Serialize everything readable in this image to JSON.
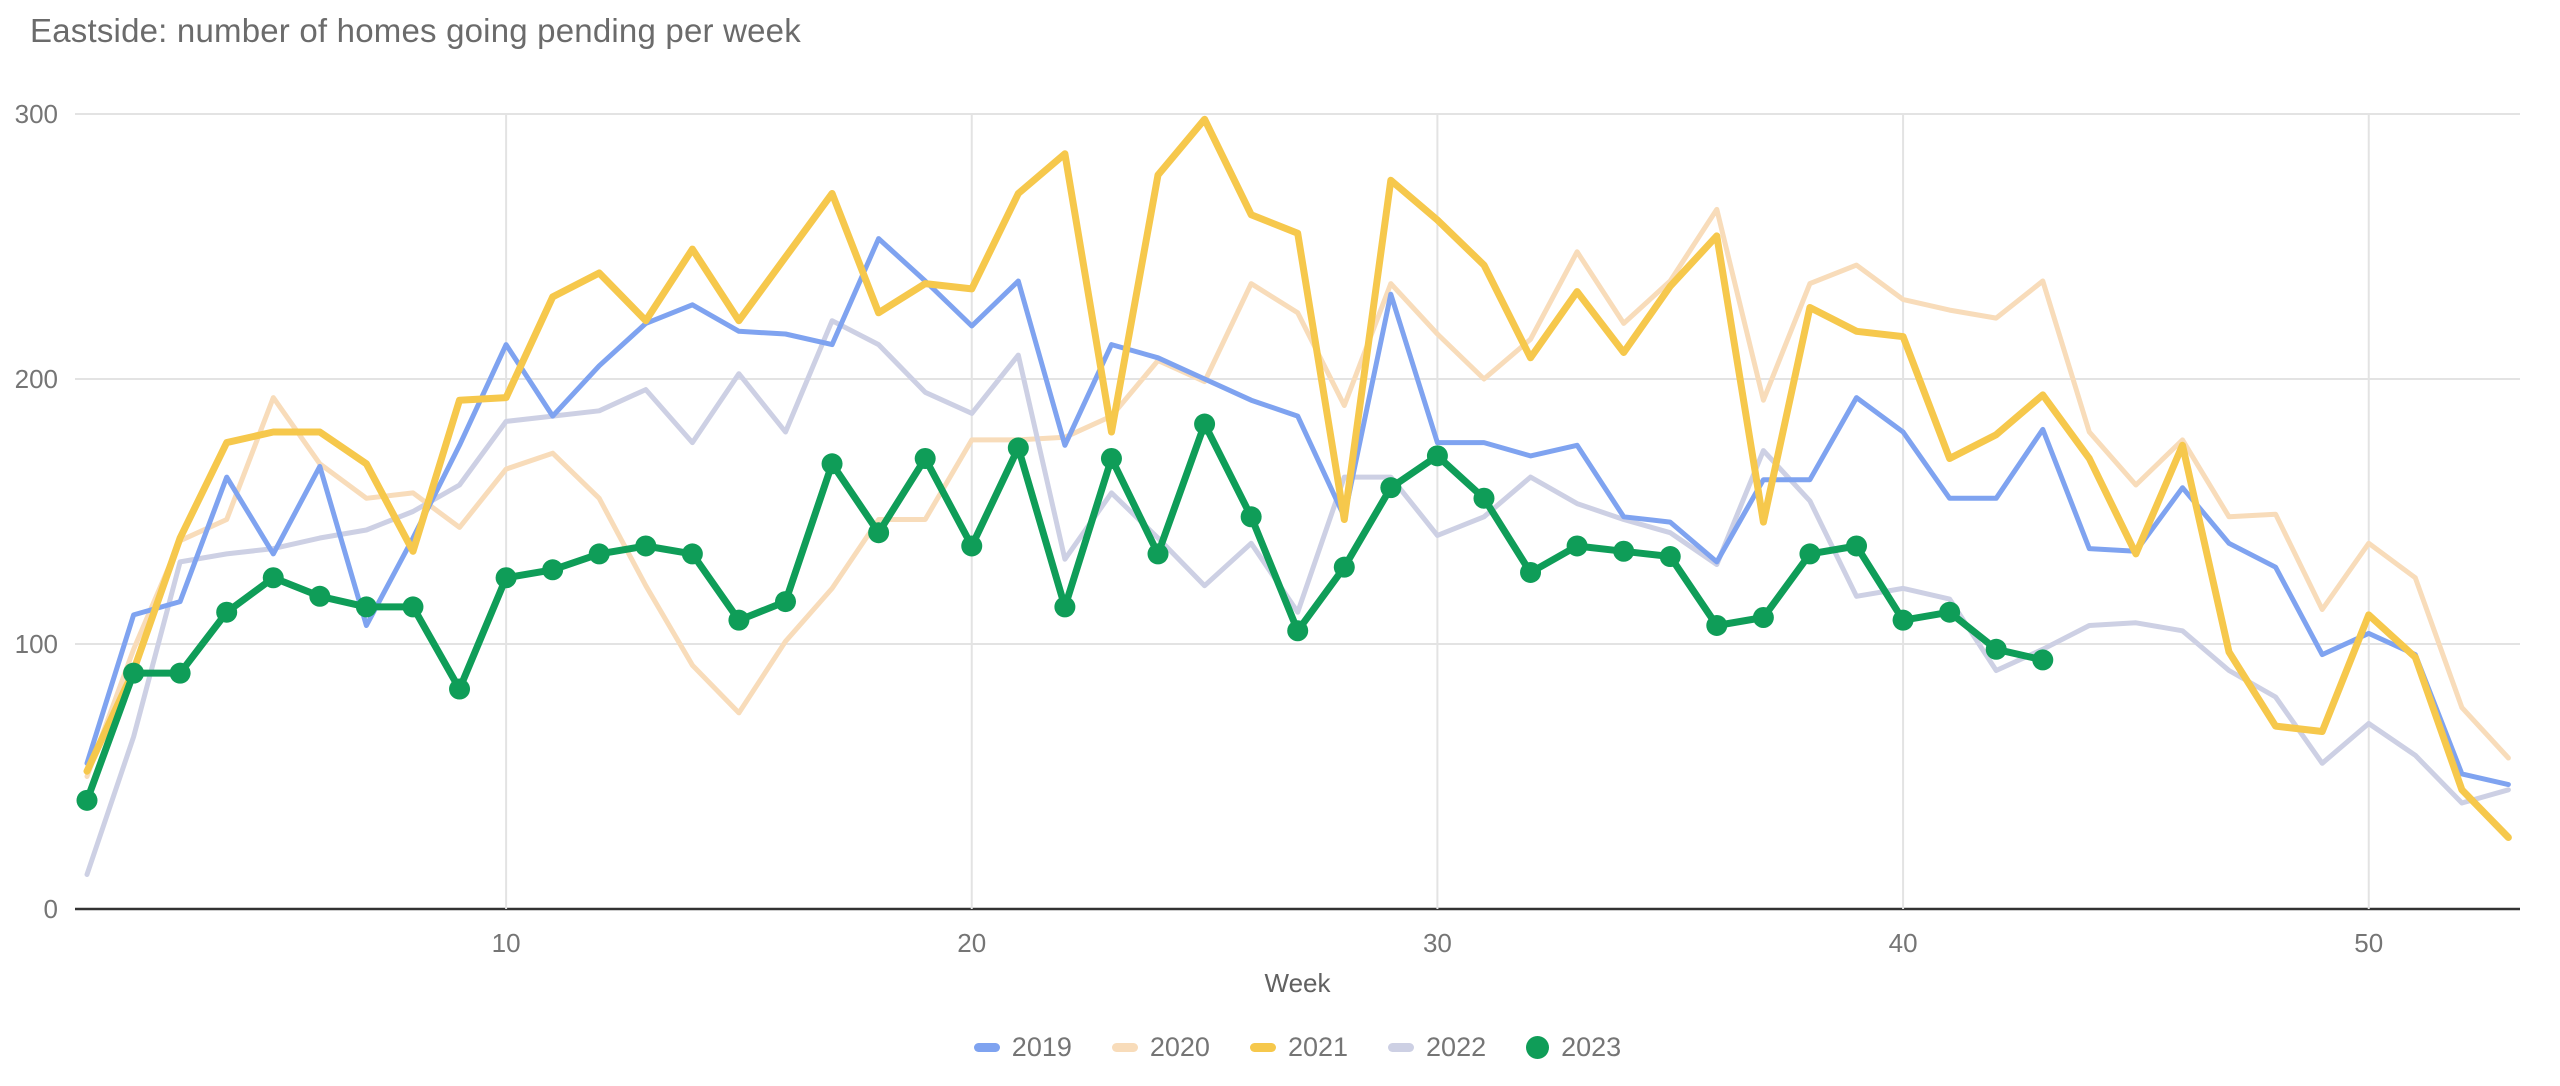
{
  "title": "Eastside: number of homes going pending per week",
  "x_axis": {
    "label": "Week"
  },
  "colors": {
    "title_text": "#6b6b6b",
    "axis_text": "#757575",
    "gridline": "#e3e3e3",
    "baseline": "#333333",
    "background": "#ffffff"
  },
  "chart_data": {
    "type": "line",
    "title": "Eastside: number of homes going pending per week",
    "xlabel": "Week",
    "ylabel": "",
    "x_start_week": 1,
    "x_end_week": 53,
    "ylim": [
      0,
      300
    ],
    "grid": {
      "x_ticks": [
        10,
        20,
        30,
        40,
        50
      ],
      "y_ticks": [
        0,
        100,
        200,
        300
      ]
    },
    "legend_position": "bottom",
    "series": [
      {
        "name": "2019",
        "color": "#7fa3f0",
        "width": 5,
        "marker": "none",
        "values": [
          55,
          111,
          116,
          163,
          134,
          167,
          107,
          140,
          175,
          213,
          186,
          205,
          221,
          228,
          218,
          217,
          213,
          253,
          237,
          220,
          237,
          175,
          213,
          208,
          200,
          192,
          186,
          148,
          232,
          176,
          176,
          171,
          175,
          148,
          146,
          131,
          162,
          162,
          193,
          180,
          155,
          155,
          181,
          136,
          135,
          159,
          138,
          129,
          96,
          104,
          96,
          51,
          47
        ]
      },
      {
        "name": "2020",
        "color": "#f8dcba",
        "width": 5,
        "marker": "none",
        "values": [
          50,
          98,
          139,
          147,
          193,
          168,
          155,
          157,
          144,
          166,
          172,
          155,
          122,
          92,
          74,
          101,
          121,
          147,
          147,
          177,
          177,
          178,
          186,
          207,
          199,
          236,
          225,
          190,
          236,
          217,
          200,
          215,
          248,
          221,
          237,
          264,
          192,
          236,
          243,
          230,
          226,
          223,
          237,
          180,
          160,
          177,
          148,
          149,
          113,
          138,
          125,
          76,
          57
        ]
      },
      {
        "name": "2021",
        "color": "#f6c84c",
        "width": 7,
        "marker": "none",
        "values": [
          52,
          90,
          140,
          176,
          180,
          180,
          168,
          135,
          192,
          193,
          231,
          240,
          222,
          249,
          222,
          246,
          270,
          225,
          236,
          234,
          270,
          285,
          180,
          277,
          298,
          262,
          255,
          147,
          275,
          260,
          243,
          208,
          233,
          210,
          235,
          254,
          146,
          227,
          218,
          216,
          170,
          179,
          194,
          170,
          134,
          175,
          97,
          69,
          67,
          111,
          95,
          45,
          27
        ]
      },
      {
        "name": "2022",
        "color": "#cdd0e4",
        "width": 5,
        "marker": "none",
        "values": [
          13,
          65,
          131,
          134,
          136,
          140,
          143,
          150,
          160,
          184,
          186,
          188,
          196,
          176,
          202,
          180,
          222,
          213,
          195,
          187,
          209,
          132,
          157,
          140,
          122,
          138,
          112,
          163,
          163,
          141,
          148,
          163,
          153,
          147,
          142,
          130,
          173,
          154,
          118,
          121,
          117,
          90,
          98,
          107,
          108,
          105,
          90,
          80,
          55,
          70,
          58,
          40,
          45
        ]
      },
      {
        "name": "2023",
        "color": "#0f9d58",
        "width": 7,
        "marker": "circle",
        "marker_radius": 10.5,
        "values": [
          41,
          89,
          89,
          112,
          125,
          118,
          114,
          114,
          83,
          125,
          128,
          134,
          137,
          134,
          109,
          116,
          168,
          142,
          170,
          137,
          174,
          114,
          170,
          134,
          183,
          148,
          105,
          129,
          159,
          171,
          155,
          127,
          137,
          135,
          133,
          107,
          110,
          134,
          137,
          109,
          112,
          98,
          94
        ]
      }
    ]
  }
}
